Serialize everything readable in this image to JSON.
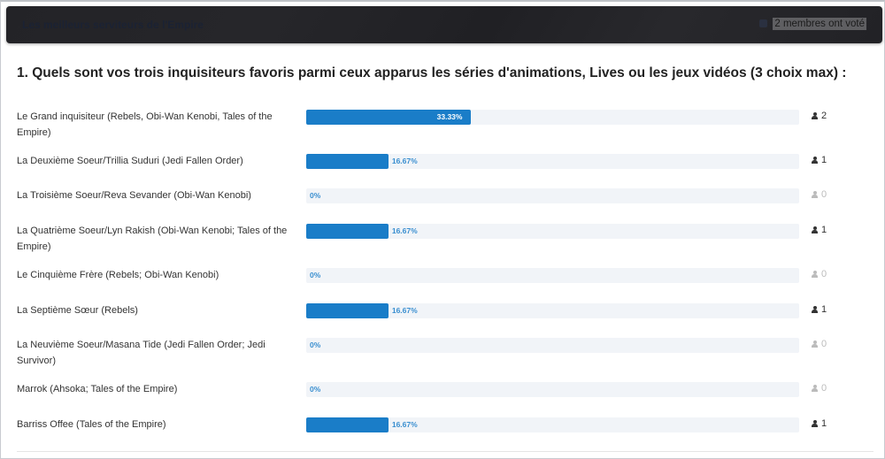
{
  "header": {
    "title": "Les meilleurs serviteurs de l'Empire",
    "voters": "2 membres ont voté"
  },
  "question": "1. Quels sont vos trois inquisiteurs favoris parmi ceux apparus les séries d'animations, Lives ou les jeux vidéos (3 choix max) :",
  "accent": "#1a7dc8",
  "options": [
    {
      "label": "Le Grand inquisiteur (Rebels, Obi-Wan Kenobi, Tales of the Empire)",
      "percent": 33.33,
      "percent_label": "33.33%",
      "votes": "2"
    },
    {
      "label": "La Deuxième Soeur/Trillia Suduri (Jedi Fallen Order)",
      "percent": 16.67,
      "percent_label": "16.67%",
      "votes": "1"
    },
    {
      "label": "La Troisième Soeur/Reva Sevander (Obi-Wan Kenobi)",
      "percent": 0,
      "percent_label": "0%",
      "votes": "0"
    },
    {
      "label": "La Quatrième Soeur/Lyn Rakish (Obi-Wan Kenobi; Tales of the Empire)",
      "percent": 16.67,
      "percent_label": "16.67%",
      "votes": "1"
    },
    {
      "label": "Le Cinquième Frère (Rebels; Obi-Wan Kenobi)",
      "percent": 0,
      "percent_label": "0%",
      "votes": "0"
    },
    {
      "label": "La Septième Sœur (Rebels)",
      "percent": 16.67,
      "percent_label": "16.67%",
      "votes": "1"
    },
    {
      "label": "La Neuvième Soeur/Masana Tide (Jedi Fallen Order; Jedi Survivor)",
      "percent": 0,
      "percent_label": "0%",
      "votes": "0"
    },
    {
      "label": "Marrok (Ahsoka; Tales of the Empire)",
      "percent": 0,
      "percent_label": "0%",
      "votes": "0"
    },
    {
      "label": "Barriss Offee (Tales of the Empire)",
      "percent": 16.67,
      "percent_label": "16.67%",
      "votes": "1"
    }
  ]
}
